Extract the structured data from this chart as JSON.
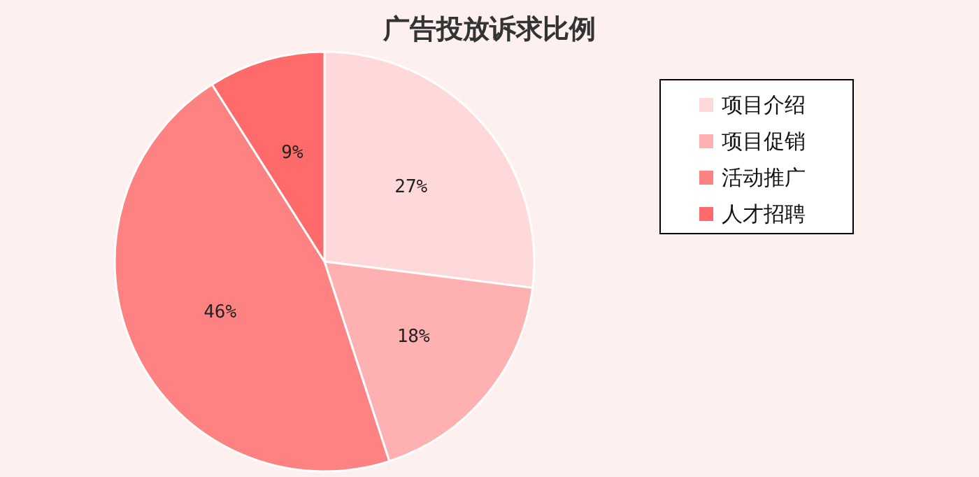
{
  "chart_data": {
    "type": "pie",
    "title": "广告投放诉求比例",
    "categories": [
      "项目介绍",
      "项目促销",
      "活动推广",
      "人才招聘"
    ],
    "values": [
      27,
      18,
      46,
      9
    ],
    "value_labels": [
      "27%",
      "18%",
      "46%",
      "9%"
    ],
    "colors": [
      "#ffd9d9",
      "#ffb0b0",
      "#ff8282",
      "#ff6a6a"
    ],
    "legend": "right"
  }
}
